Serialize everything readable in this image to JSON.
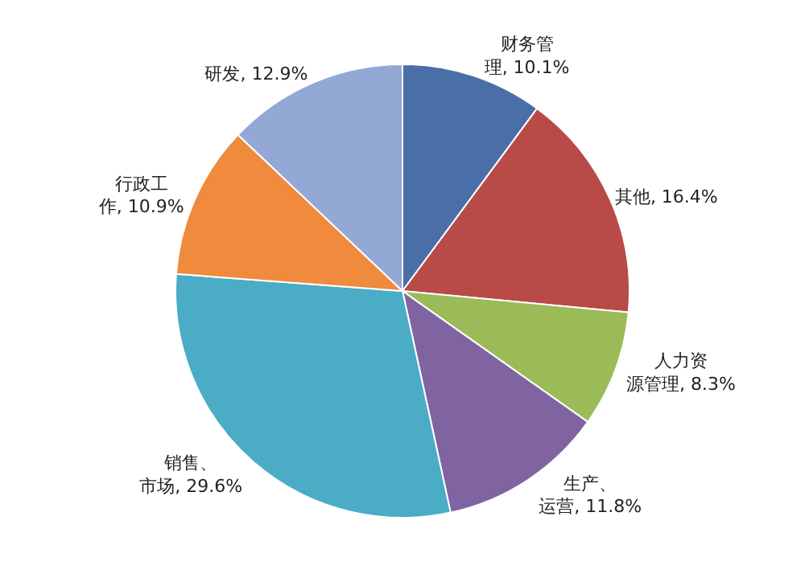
{
  "chart_data": {
    "type": "pie",
    "categories": [
      "财务管理, 10.1%",
      "其他, 16.4%",
      "人力资源管理, 8.3%",
      "生产、运营, 11.8%",
      "销售、市场, 29.6%",
      "行政工作, 10.9%",
      "研发, 12.9%"
    ],
    "values": [
      10.1,
      16.4,
      8.3,
      11.8,
      29.6,
      10.9,
      12.9
    ],
    "colors": [
      "#4a6fa8",
      "#b84a47",
      "#9bbb59",
      "#8064a2",
      "#4bacc6",
      "#f08a3c",
      "#94a8d6"
    ],
    "legend": false
  }
}
